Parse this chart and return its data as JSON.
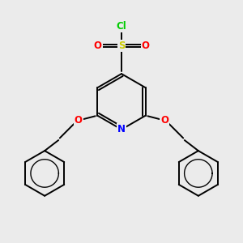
{
  "bg_color": "#ebebeb",
  "bond_color": "#000000",
  "atom_colors": {
    "N": "#0000ff",
    "O": "#ff0000",
    "S": "#cccc00",
    "Cl": "#00cc00",
    "C": "#000000"
  },
  "font_size_atom": 8.5,
  "line_width": 1.4,
  "figsize": [
    3.0,
    3.0
  ],
  "dpi": 100,
  "xlim": [
    -4.5,
    4.5
  ],
  "ylim": [
    -5.0,
    3.5
  ]
}
